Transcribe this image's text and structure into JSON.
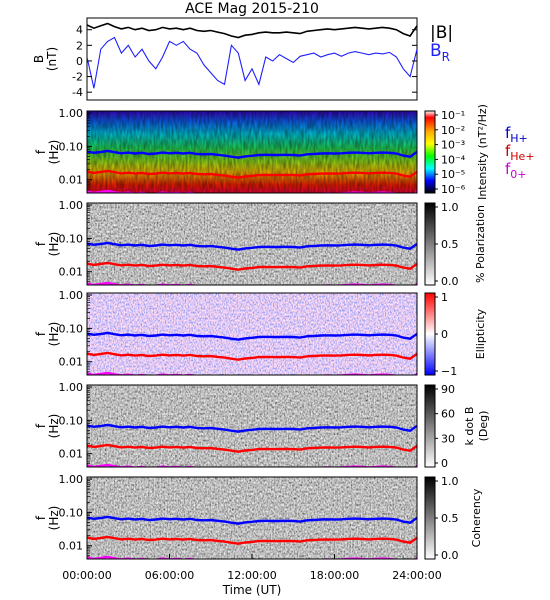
{
  "chart_data": [
    {
      "type": "line",
      "title": "ACE Mag 2015-210",
      "ylabel": "B",
      "yunit": "(nT)",
      "ylim": [
        -5,
        5.5
      ],
      "yticks": [
        "4",
        "2",
        "0",
        "-2",
        "-4"
      ],
      "ytick_values": [
        4,
        2,
        0,
        -2,
        -4
      ],
      "series": [
        {
          "name": "|B|",
          "color": "#000000",
          "x_hours": [
            0,
            0.5,
            1,
            1.5,
            2,
            2.5,
            3,
            3.5,
            4,
            4.5,
            5,
            5.5,
            6,
            6.5,
            7,
            7.5,
            8,
            8.5,
            9,
            9.5,
            10,
            10.5,
            11,
            11.5,
            12,
            12.5,
            13,
            13.5,
            14,
            14.5,
            15,
            15.5,
            16,
            16.5,
            17,
            17.5,
            18,
            18.5,
            19,
            19.5,
            20,
            20.5,
            21,
            21.5,
            22,
            22.5,
            23,
            23.5,
            24
          ],
          "values": [
            4.6,
            4.2,
            4.5,
            4.8,
            4.4,
            4.1,
            4.3,
            4.0,
            4.2,
            3.9,
            4.0,
            4.3,
            4.1,
            4.2,
            4.0,
            4.2,
            3.9,
            3.8,
            3.9,
            3.7,
            3.5,
            3.2,
            3.0,
            3.3,
            3.4,
            3.6,
            3.7,
            3.6,
            3.6,
            3.7,
            3.6,
            3.5,
            3.8,
            3.9,
            4.0,
            4.1,
            4.0,
            4.1,
            4.2,
            4.3,
            4.2,
            4.1,
            4.2,
            4.3,
            4.2,
            4.0,
            3.5,
            3.2,
            4.5
          ]
        },
        {
          "name": "B",
          "subscript": "R",
          "color": "#1f1fff",
          "x_hours": [
            0,
            0.5,
            1,
            1.5,
            2,
            2.5,
            3,
            3.5,
            4,
            4.5,
            5,
            5.5,
            6,
            6.5,
            7,
            7.5,
            8,
            8.5,
            9,
            9.5,
            10,
            10.5,
            11,
            11.5,
            12,
            12.5,
            13,
            13.5,
            14,
            14.5,
            15,
            15.5,
            16,
            16.5,
            17,
            17.5,
            18,
            18.5,
            19,
            19.5,
            20,
            20.5,
            21,
            21.5,
            22,
            22.5,
            23,
            23.5,
            24
          ],
          "values": [
            0.5,
            -3.5,
            1.5,
            2.5,
            3.0,
            1.0,
            2.0,
            0.5,
            1.5,
            0.0,
            -1.0,
            0.5,
            2.5,
            2.0,
            2.5,
            1.5,
            1.0,
            -0.5,
            -1.5,
            -2.5,
            -3.0,
            2.0,
            1.0,
            -2.5,
            -1.0,
            -3.0,
            0.5,
            0.0,
            0.8,
            0.3,
            -0.2,
            0.6,
            0.8,
            1.0,
            0.5,
            0.8,
            1.0,
            0.6,
            1.0,
            1.2,
            1.0,
            0.8,
            1.0,
            0.9,
            1.1,
            0.5,
            -1.0,
            -2.0,
            1.5
          ]
        }
      ]
    },
    {
      "type": "heatmap",
      "ylabel": "f",
      "yunit": "(Hz)",
      "yscale": "log",
      "ylim": [
        0.004,
        1.15
      ],
      "yticks": [
        "1.00",
        "0.10",
        "0.01"
      ],
      "ytick_values": [
        1,
        0.1,
        0.01
      ],
      "colorbar": {
        "label": "Intensity (nT²/Hz)",
        "ticks": [
          "10⁻¹",
          "10⁻²",
          "10⁻³",
          "10⁻⁴",
          "10⁻⁵",
          "10⁻⁶"
        ],
        "tick_values": [
          0.1,
          0.01,
          0.001,
          0.0001,
          1e-05,
          1e-06
        ],
        "colors": [
          "#ffffff",
          "#ff0000",
          "#ffaa00",
          "#ffff00",
          "#00ff00",
          "#00ffff",
          "#0000ff",
          "#000000"
        ]
      },
      "legend": [
        {
          "main": "f",
          "sub": "H+",
          "color": "#0000cc"
        },
        {
          "main": "f",
          "sub": "He+",
          "color": "#cc0000"
        },
        {
          "main": "f",
          "sub": "0+",
          "color": "#cc00cc"
        }
      ]
    },
    {
      "type": "heatmap",
      "ylabel": "f",
      "yunit": "(Hz)",
      "yscale": "log",
      "yticks": [
        "1.00",
        "0.10",
        "0.01"
      ],
      "ytick_values": [
        1,
        0.1,
        0.01
      ],
      "colorbar": {
        "label": "% Polarization",
        "ticks": [
          "1.0",
          "0.5",
          "0.0"
        ],
        "tick_values": [
          1,
          0.5,
          0
        ],
        "colors": [
          "#000000",
          "#ffffff"
        ]
      }
    },
    {
      "type": "heatmap",
      "ylabel": "f",
      "yunit": "(Hz)",
      "yscale": "log",
      "yticks": [
        "1.00",
        "0.10",
        "0.01"
      ],
      "ytick_values": [
        1,
        0.1,
        0.01
      ],
      "colorbar": {
        "label": "Ellipticity",
        "ticks": [
          "1",
          "0",
          "−1"
        ],
        "tick_values": [
          1,
          0,
          -1
        ],
        "colors": [
          "#ff0000",
          "#ffffff",
          "#0000ff"
        ]
      }
    },
    {
      "type": "heatmap",
      "ylabel": "f",
      "yunit": "(Hz)",
      "yscale": "log",
      "yticks": [
        "1.00",
        "0.10",
        "0.01"
      ],
      "ytick_values": [
        1,
        0.1,
        0.01
      ],
      "colorbar": {
        "label": "k dot B",
        "unit": "(Deg)",
        "ticks": [
          "90",
          "60",
          "30",
          "0"
        ],
        "tick_values": [
          90,
          60,
          30,
          0
        ],
        "colors": [
          "#000000",
          "#ffffff"
        ]
      }
    },
    {
      "type": "heatmap",
      "ylabel": "f",
      "yunit": "(Hz)",
      "yscale": "log",
      "yticks": [
        "1.00",
        "0.10",
        "0.01"
      ],
      "ytick_values": [
        1,
        0.1,
        0.01
      ],
      "xlabel": "Time (UT)",
      "xticks": [
        "00:00:00",
        "06:00:00",
        "12:00:00",
        "18:00:00",
        "24:00:00"
      ],
      "xtick_values": [
        0,
        6,
        12,
        18,
        24
      ],
      "colorbar": {
        "label": "Coherency",
        "ticks": [
          "1.0",
          "0.5",
          "0.0"
        ],
        "tick_values": [
          1,
          0.5,
          0
        ],
        "colors": [
          "#000000",
          "#ffffff"
        ]
      }
    }
  ],
  "gyrofrequency_lines": {
    "x_hours": [
      0,
      0.5,
      1,
      1.5,
      2,
      2.5,
      3,
      3.5,
      4,
      4.5,
      5,
      5.5,
      6,
      6.5,
      7,
      7.5,
      8,
      8.5,
      9,
      9.5,
      10,
      10.5,
      11,
      11.5,
      12,
      12.5,
      13,
      13.5,
      14,
      14.5,
      15,
      15.5,
      16,
      16.5,
      17,
      17.5,
      18,
      18.5,
      19,
      19.5,
      20,
      20.5,
      21,
      21.5,
      22,
      22.5,
      23,
      23.5,
      24
    ],
    "fH_hz": [
      0.07,
      0.064,
      0.068,
      0.073,
      0.067,
      0.062,
      0.065,
      0.061,
      0.064,
      0.059,
      0.061,
      0.065,
      0.062,
      0.064,
      0.061,
      0.064,
      0.059,
      0.058,
      0.059,
      0.056,
      0.053,
      0.049,
      0.046,
      0.05,
      0.052,
      0.055,
      0.056,
      0.055,
      0.055,
      0.056,
      0.055,
      0.053,
      0.058,
      0.059,
      0.061,
      0.062,
      0.061,
      0.062,
      0.064,
      0.065,
      0.064,
      0.062,
      0.064,
      0.065,
      0.064,
      0.061,
      0.053,
      0.049,
      0.069
    ],
    "fHe_hz": [
      0.0175,
      0.016,
      0.017,
      0.0183,
      0.0168,
      0.0155,
      0.0163,
      0.0153,
      0.016,
      0.0148,
      0.0153,
      0.0163,
      0.0155,
      0.016,
      0.0153,
      0.016,
      0.0148,
      0.0145,
      0.0148,
      0.014,
      0.0133,
      0.0123,
      0.0115,
      0.0125,
      0.013,
      0.0138,
      0.014,
      0.0138,
      0.0138,
      0.014,
      0.0138,
      0.0133,
      0.0145,
      0.0148,
      0.0153,
      0.0155,
      0.0153,
      0.0155,
      0.016,
      0.0163,
      0.016,
      0.0155,
      0.016,
      0.0163,
      0.016,
      0.0153,
      0.0133,
      0.0123,
      0.0173
    ],
    "fO_hz": [
      0.0044,
      0.004,
      0.0043,
      0.0046,
      0.0042,
      0.0039,
      0.0041,
      0.0038,
      0.004,
      0.0037,
      0.0038,
      0.0041,
      0.0039,
      0.004,
      0.0038,
      0.004,
      0.0037,
      0.0036,
      0.0037,
      0.0035,
      0.0033,
      0.0031,
      0.0029,
      0.0031,
      0.0033,
      0.0035,
      0.0035,
      0.0035,
      0.0035,
      0.0035,
      0.0035,
      0.0033,
      0.0036,
      0.0037,
      0.0038,
      0.0039,
      0.0038,
      0.0039,
      0.004,
      0.0041,
      0.004,
      0.0039,
      0.004,
      0.0041,
      0.004,
      0.0038,
      0.0033,
      0.0031,
      0.0043
    ]
  }
}
